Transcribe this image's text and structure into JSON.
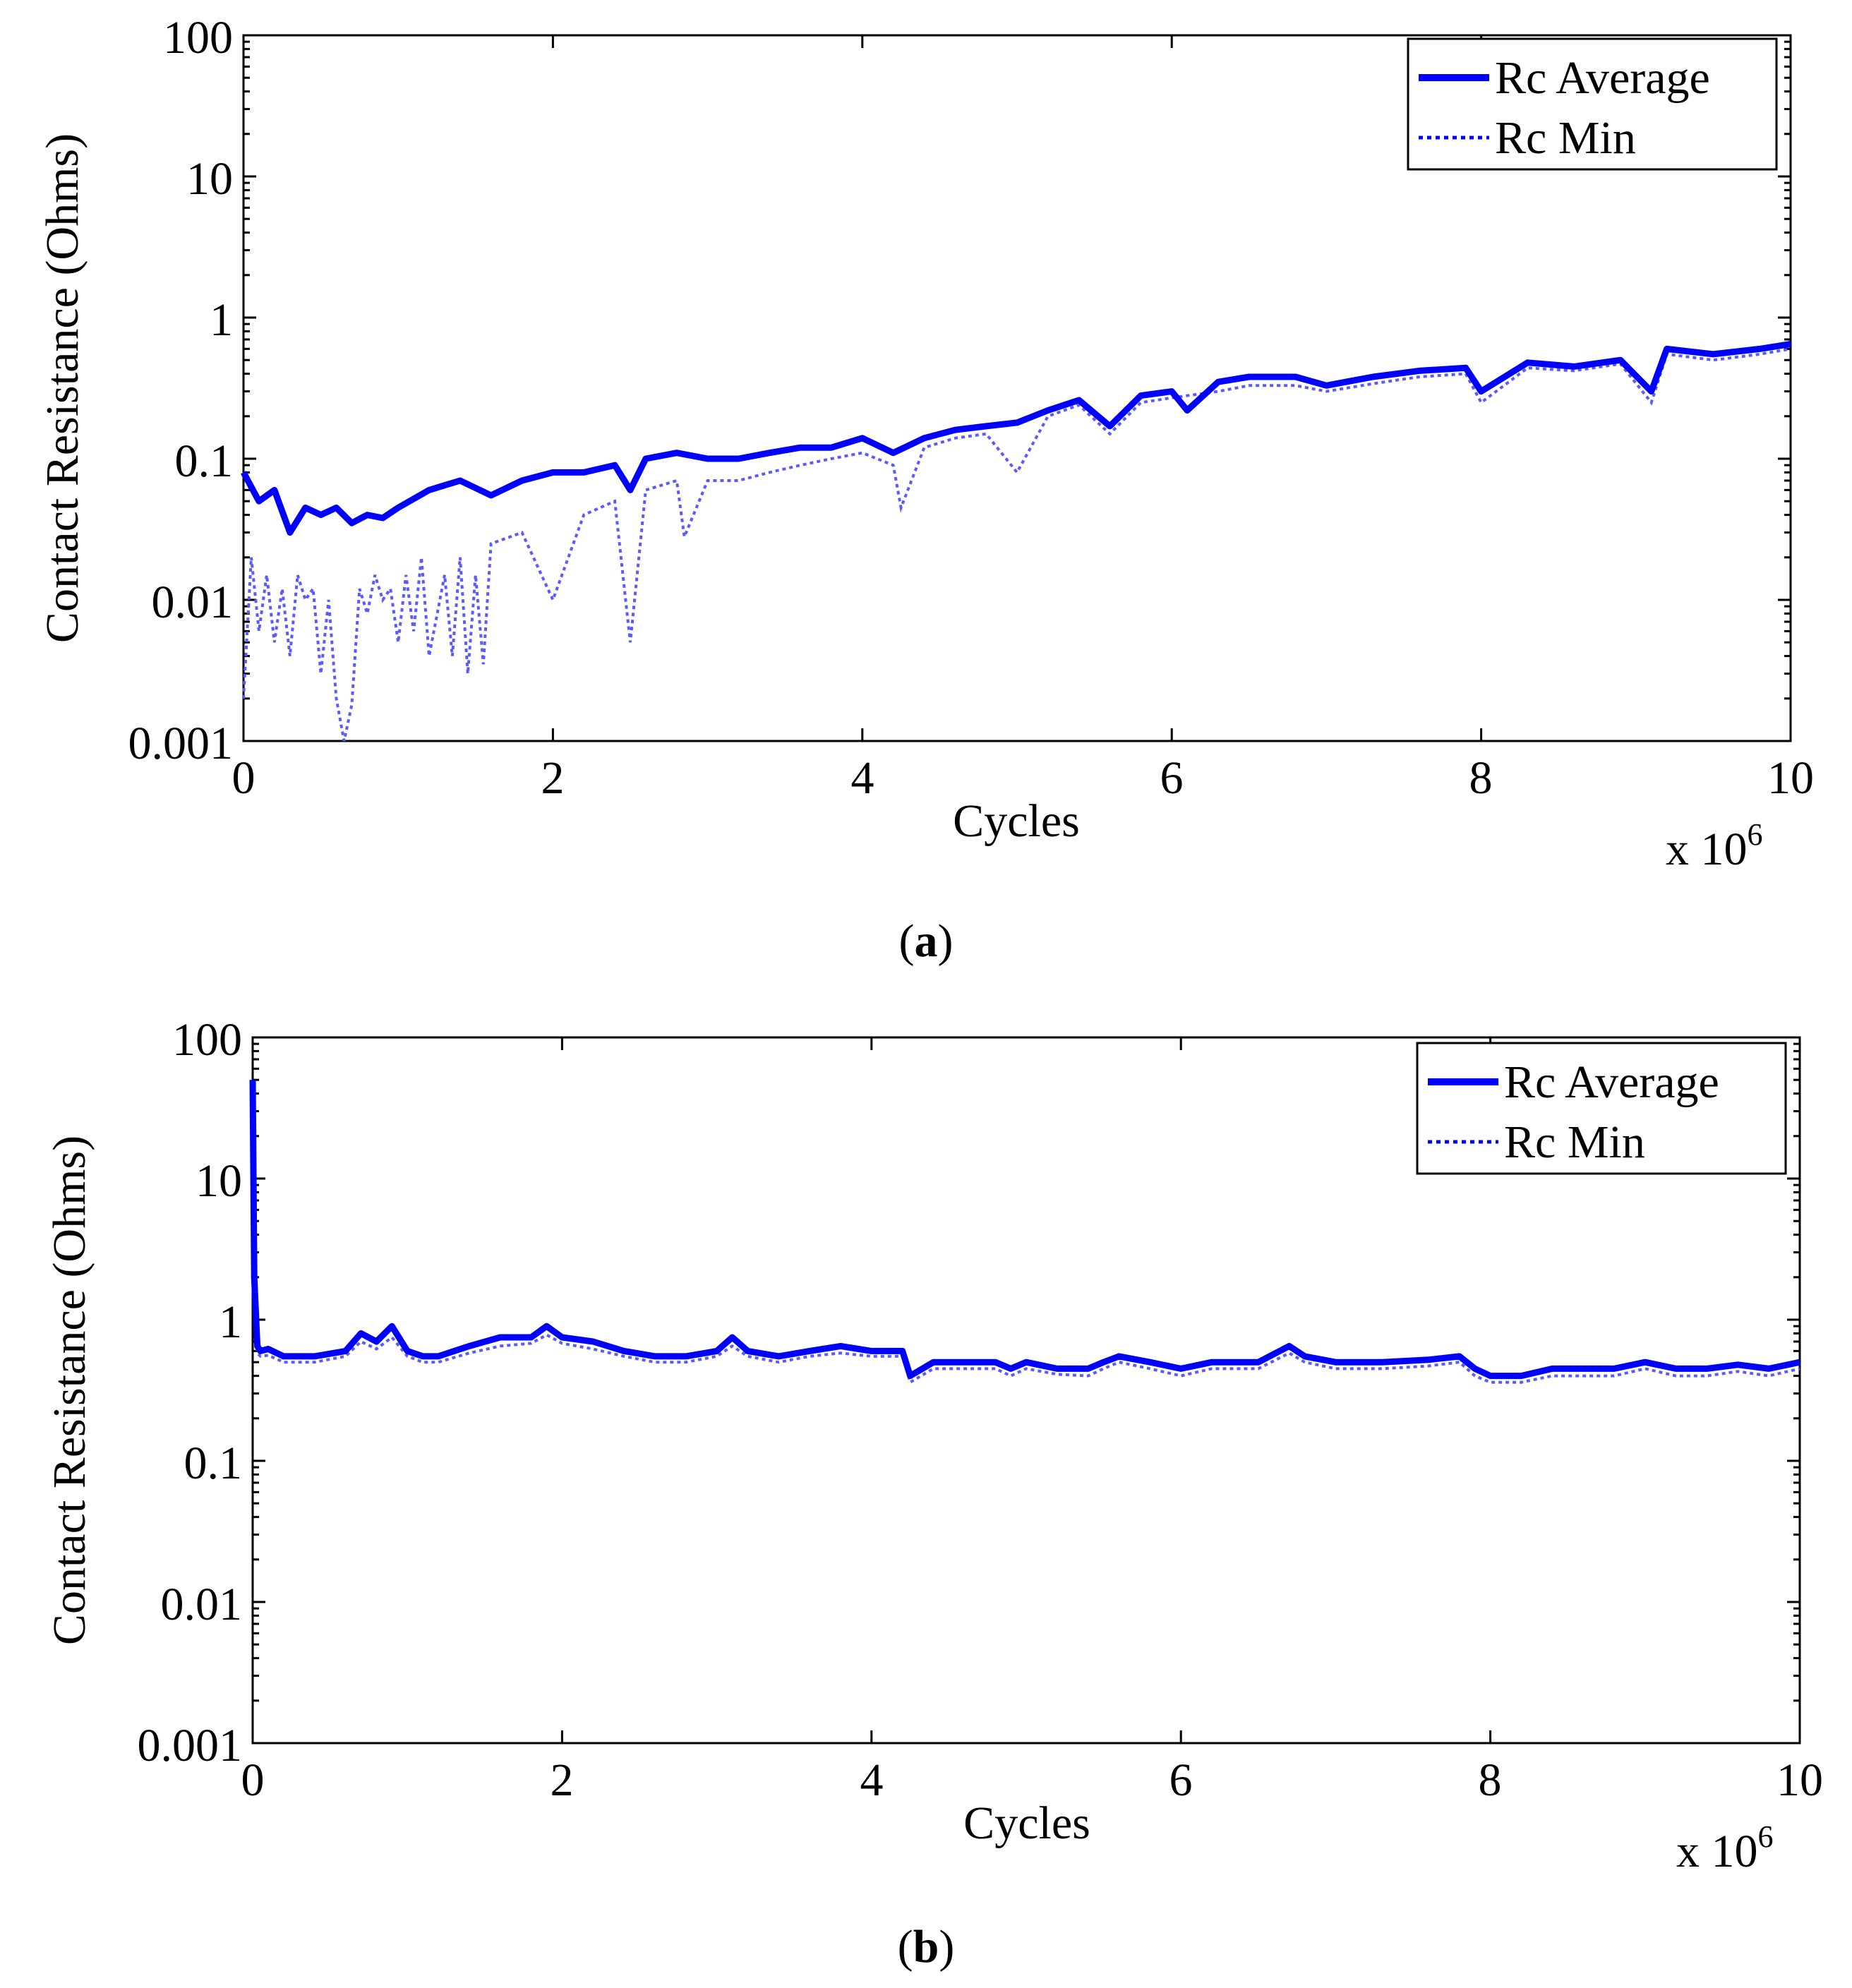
{
  "figure": {
    "panels": [
      {
        "caption_open": "(",
        "caption_label": "a",
        "caption_close": ")"
      },
      {
        "caption_open": "(",
        "caption_label": "b",
        "caption_close": ")"
      }
    ]
  },
  "colors": {
    "series": "#0000ff",
    "series_min": "#5a5aff",
    "axis": "#000000"
  },
  "chart_data": [
    {
      "id": "a",
      "type": "line",
      "xlabel": "Cycles",
      "x_multiplier": "x 10",
      "x_multiplier_exp": "6",
      "ylabel": "Contact Resistance (Ohms)",
      "yscale": "log",
      "xlim": [
        0,
        10
      ],
      "ylim": [
        0.001,
        100
      ],
      "x_ticks": [
        0,
        2,
        4,
        6,
        8,
        10
      ],
      "x_tick_labels": [
        "0",
        "2",
        "4",
        "6",
        "8",
        "10"
      ],
      "y_ticks": [
        0.001,
        0.01,
        0.1,
        1,
        10,
        100
      ],
      "y_tick_labels": [
        "0.001",
        "0.01",
        "0.1",
        "1",
        "10",
        "100"
      ],
      "legend": {
        "position": "top-right",
        "entries": [
          "Rc Average",
          "Rc Min"
        ]
      },
      "series": [
        {
          "name": "Rc Average",
          "style": "solid",
          "x": [
            0,
            0.1,
            0.2,
            0.3,
            0.4,
            0.5,
            0.6,
            0.7,
            0.8,
            0.9,
            1.0,
            1.2,
            1.4,
            1.6,
            1.8,
            2.0,
            2.2,
            2.4,
            2.5,
            2.6,
            2.8,
            3.0,
            3.2,
            3.4,
            3.6,
            3.8,
            4.0,
            4.2,
            4.4,
            4.6,
            4.8,
            5.0,
            5.2,
            5.4,
            5.6,
            5.8,
            6.0,
            6.1,
            6.3,
            6.5,
            6.8,
            7.0,
            7.3,
            7.6,
            7.9,
            8.0,
            8.3,
            8.6,
            8.9,
            9.1,
            9.2,
            9.5,
            9.8,
            10.0
          ],
          "values": [
            0.08,
            0.05,
            0.06,
            0.03,
            0.045,
            0.04,
            0.045,
            0.035,
            0.04,
            0.038,
            0.045,
            0.06,
            0.07,
            0.055,
            0.07,
            0.08,
            0.08,
            0.09,
            0.06,
            0.1,
            0.11,
            0.1,
            0.1,
            0.11,
            0.12,
            0.12,
            0.14,
            0.11,
            0.14,
            0.16,
            0.17,
            0.18,
            0.22,
            0.26,
            0.17,
            0.28,
            0.3,
            0.22,
            0.35,
            0.38,
            0.38,
            0.33,
            0.38,
            0.42,
            0.44,
            0.3,
            0.48,
            0.45,
            0.5,
            0.3,
            0.6,
            0.55,
            0.6,
            0.65
          ]
        },
        {
          "name": "Rc Min",
          "style": "dotted",
          "x": [
            0,
            0.05,
            0.1,
            0.15,
            0.2,
            0.25,
            0.3,
            0.35,
            0.4,
            0.45,
            0.5,
            0.55,
            0.6,
            0.65,
            0.7,
            0.75,
            0.8,
            0.85,
            0.9,
            0.95,
            1.0,
            1.05,
            1.1,
            1.15,
            1.2,
            1.3,
            1.35,
            1.4,
            1.45,
            1.5,
            1.55,
            1.6,
            1.8,
            2.0,
            2.2,
            2.4,
            2.5,
            2.6,
            2.8,
            2.85,
            3.0,
            3.2,
            3.4,
            3.6,
            3.8,
            4.0,
            4.2,
            4.25,
            4.4,
            4.6,
            4.8,
            5.0,
            5.2,
            5.4,
            5.6,
            5.8,
            6.0,
            6.3,
            6.5,
            6.8,
            7.0,
            7.3,
            7.6,
            7.9,
            8.0,
            8.3,
            8.6,
            8.9,
            9.1,
            9.2,
            9.5,
            9.8,
            10.0
          ],
          "values": [
            0.002,
            0.02,
            0.006,
            0.015,
            0.005,
            0.012,
            0.004,
            0.015,
            0.01,
            0.012,
            0.003,
            0.01,
            0.002,
            0.001,
            0.0018,
            0.012,
            0.008,
            0.015,
            0.01,
            0.012,
            0.005,
            0.015,
            0.006,
            0.02,
            0.004,
            0.015,
            0.004,
            0.02,
            0.003,
            0.015,
            0.0035,
            0.025,
            0.03,
            0.01,
            0.04,
            0.05,
            0.005,
            0.06,
            0.07,
            0.028,
            0.07,
            0.07,
            0.08,
            0.09,
            0.1,
            0.11,
            0.09,
            0.045,
            0.12,
            0.14,
            0.15,
            0.08,
            0.2,
            0.24,
            0.15,
            0.25,
            0.27,
            0.3,
            0.33,
            0.33,
            0.3,
            0.34,
            0.38,
            0.4,
            0.25,
            0.44,
            0.42,
            0.47,
            0.25,
            0.55,
            0.5,
            0.55,
            0.6
          ]
        }
      ]
    },
    {
      "id": "b",
      "type": "line",
      "xlabel": "Cycles",
      "x_multiplier": "x 10",
      "x_multiplier_exp": "6",
      "ylabel": "Contact Resistance (Ohms)",
      "yscale": "log",
      "xlim": [
        0,
        10
      ],
      "ylim": [
        0.001,
        100
      ],
      "x_ticks": [
        0,
        2,
        4,
        6,
        8,
        10
      ],
      "x_tick_labels": [
        "0",
        "2",
        "4",
        "6",
        "8",
        "10"
      ],
      "y_ticks": [
        0.001,
        0.01,
        0.1,
        1,
        10,
        100
      ],
      "y_tick_labels": [
        "0.001",
        "0.01",
        "0.1",
        "1",
        "10",
        "100"
      ],
      "legend": {
        "position": "top-right",
        "entries": [
          "Rc Average",
          "Rc Min"
        ]
      },
      "series": [
        {
          "name": "Rc Average",
          "style": "solid",
          "x": [
            0,
            0.01,
            0.03,
            0.05,
            0.1,
            0.2,
            0.4,
            0.6,
            0.7,
            0.8,
            0.9,
            1.0,
            1.1,
            1.2,
            1.4,
            1.6,
            1.8,
            1.9,
            2.0,
            2.2,
            2.4,
            2.6,
            2.8,
            3.0,
            3.1,
            3.2,
            3.4,
            3.6,
            3.8,
            4.0,
            4.2,
            4.25,
            4.4,
            4.6,
            4.8,
            4.9,
            5.0,
            5.2,
            5.4,
            5.5,
            5.6,
            5.8,
            6.0,
            6.2,
            6.5,
            6.7,
            6.8,
            7.0,
            7.3,
            7.6,
            7.8,
            7.9,
            8.0,
            8.2,
            8.4,
            8.6,
            8.8,
            9.0,
            9.2,
            9.4,
            9.6,
            9.8,
            10.0
          ],
          "values": [
            50,
            2,
            0.65,
            0.6,
            0.62,
            0.55,
            0.55,
            0.6,
            0.8,
            0.7,
            0.9,
            0.6,
            0.55,
            0.55,
            0.65,
            0.75,
            0.75,
            0.9,
            0.75,
            0.7,
            0.6,
            0.55,
            0.55,
            0.6,
            0.75,
            0.6,
            0.55,
            0.6,
            0.65,
            0.6,
            0.6,
            0.4,
            0.5,
            0.5,
            0.5,
            0.45,
            0.5,
            0.45,
            0.45,
            0.5,
            0.55,
            0.5,
            0.45,
            0.5,
            0.5,
            0.65,
            0.55,
            0.5,
            0.5,
            0.52,
            0.55,
            0.45,
            0.4,
            0.4,
            0.45,
            0.45,
            0.45,
            0.5,
            0.45,
            0.45,
            0.48,
            0.45,
            0.5
          ]
        },
        {
          "name": "Rc Min",
          "style": "dotted",
          "x": [
            0,
            0.01,
            0.03,
            0.05,
            0.1,
            0.2,
            0.4,
            0.6,
            0.7,
            0.8,
            0.9,
            1.0,
            1.1,
            1.2,
            1.4,
            1.6,
            1.8,
            1.9,
            2.0,
            2.2,
            2.4,
            2.6,
            2.8,
            3.0,
            3.1,
            3.2,
            3.4,
            3.6,
            3.8,
            4.0,
            4.2,
            4.25,
            4.4,
            4.6,
            4.8,
            4.9,
            5.0,
            5.2,
            5.4,
            5.5,
            5.6,
            5.8,
            6.0,
            6.2,
            6.5,
            6.7,
            6.8,
            7.0,
            7.3,
            7.6,
            7.8,
            7.9,
            8.0,
            8.2,
            8.4,
            8.6,
            8.8,
            9.0,
            9.2,
            9.4,
            9.6,
            9.8,
            10.0
          ],
          "values": [
            40,
            1.5,
            0.58,
            0.55,
            0.56,
            0.5,
            0.5,
            0.55,
            0.7,
            0.62,
            0.75,
            0.55,
            0.5,
            0.5,
            0.58,
            0.65,
            0.68,
            0.78,
            0.68,
            0.62,
            0.55,
            0.5,
            0.5,
            0.55,
            0.65,
            0.55,
            0.5,
            0.55,
            0.58,
            0.55,
            0.55,
            0.36,
            0.45,
            0.45,
            0.45,
            0.4,
            0.45,
            0.41,
            0.4,
            0.45,
            0.5,
            0.45,
            0.4,
            0.45,
            0.45,
            0.58,
            0.5,
            0.45,
            0.45,
            0.47,
            0.5,
            0.4,
            0.36,
            0.36,
            0.4,
            0.4,
            0.4,
            0.45,
            0.4,
            0.4,
            0.43,
            0.4,
            0.45
          ]
        }
      ]
    }
  ]
}
